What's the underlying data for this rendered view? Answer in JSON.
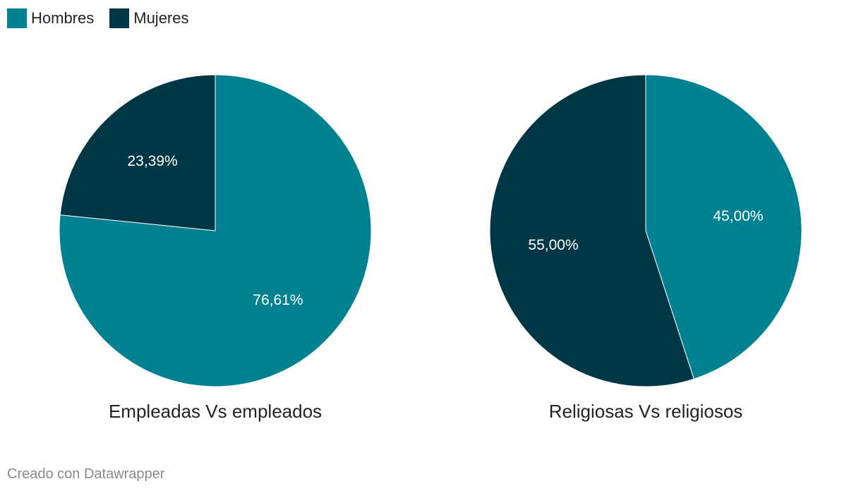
{
  "legend": [
    {
      "name": "Hombres",
      "color": "#008191"
    },
    {
      "name": "Mujeres",
      "color": "#003747"
    }
  ],
  "chart_data": [
    {
      "type": "pie",
      "title": "Empleadas Vs empleados",
      "slices": [
        {
          "name": "Hombres",
          "value": 76.61,
          "label": "76,61%",
          "color": "#008191"
        },
        {
          "name": "Mujeres",
          "value": 23.39,
          "label": "23,39%",
          "color": "#003747"
        }
      ]
    },
    {
      "type": "pie",
      "title": "Religiosas Vs religiosos",
      "slices": [
        {
          "name": "Hombres",
          "value": 45.0,
          "label": "45,00%",
          "color": "#008191"
        },
        {
          "name": "Mujeres",
          "value": 55.0,
          "label": "55,00%",
          "color": "#003747"
        }
      ]
    }
  ],
  "footer": "Creado con Datawrapper"
}
